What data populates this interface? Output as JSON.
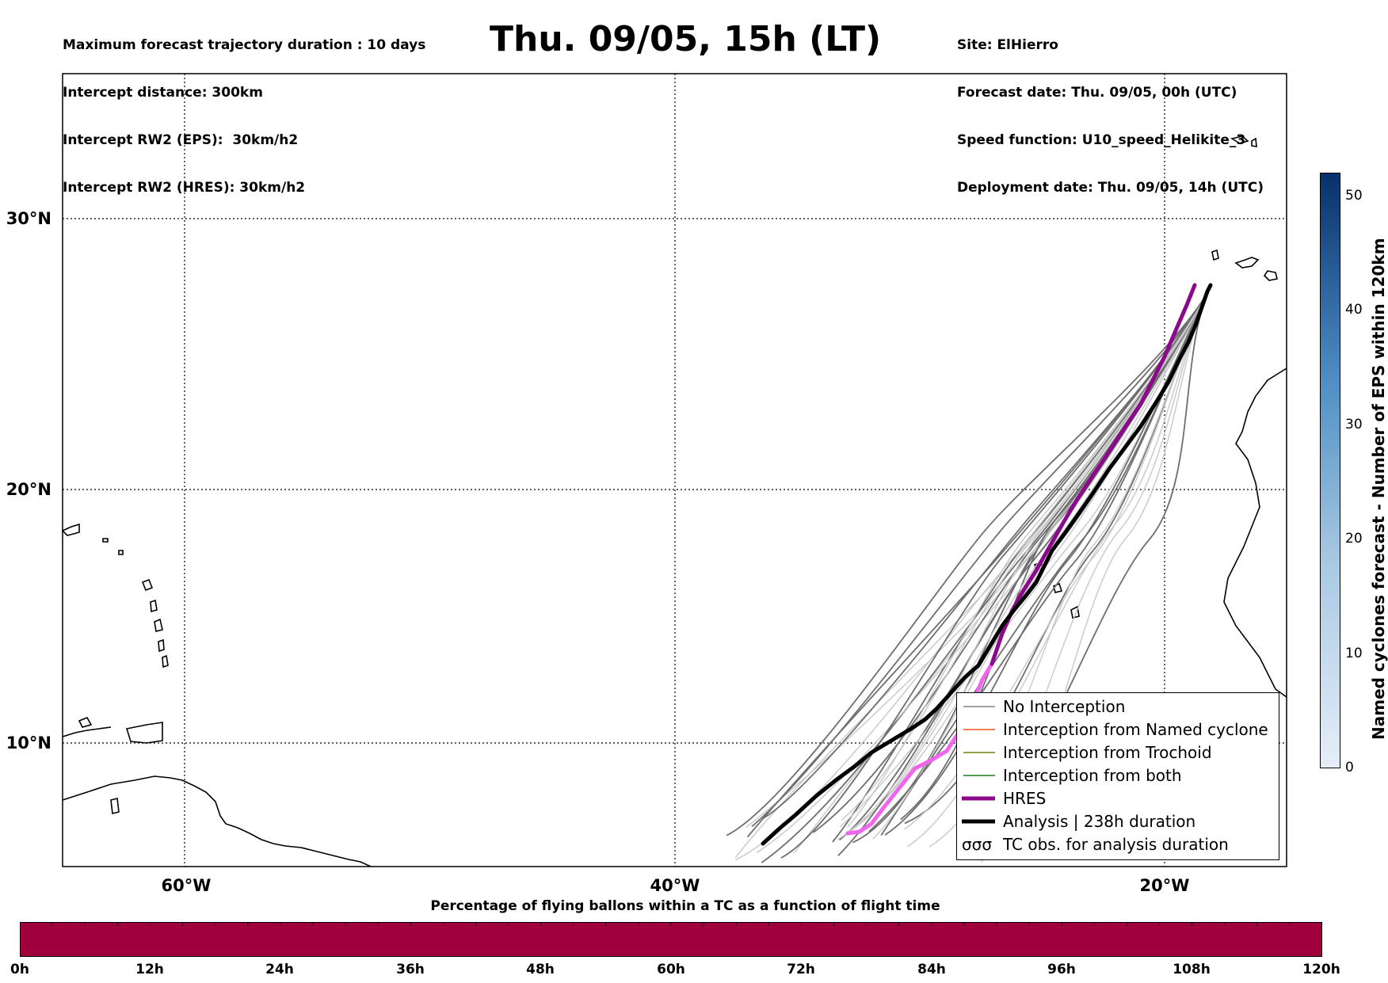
{
  "header": {
    "left_lines": [
      "Maximum forecast trajectory duration : 10 days",
      "Intercept distance: 300km",
      "Intercept RW2 (EPS):  30km/h2",
      "Intercept RW2 (HRES): 30km/h2"
    ],
    "title": "Thu. 09/05, 15h (LT)",
    "right_lines": [
      "Site: ElHierro",
      "Forecast date: Thu. 09/05, 00h (UTC)",
      "Speed function: U10_speed_Helikite_3",
      "Deployment date: Thu. 09/05, 14h (UTC)"
    ]
  },
  "map": {
    "lat_ticks": [
      "30°N",
      "20°N",
      "10°N"
    ],
    "lon_ticks": [
      "60°W",
      "40°W",
      "20°W"
    ],
    "gridline_style": "dotted"
  },
  "legend": {
    "items": [
      {
        "label": "No Interception",
        "color": "#808080",
        "style": "thin"
      },
      {
        "label": "Interception from Named cyclone",
        "color": "#e8541c",
        "style": "thin"
      },
      {
        "label": "Interception from Trochoid",
        "color": "#7a7a12",
        "style": "thin"
      },
      {
        "label": "Interception from both",
        "color": "#1e7a1e",
        "style": "thin"
      },
      {
        "label": "HRES",
        "color": "#8b0a8b",
        "style": "thick"
      },
      {
        "label": "Analysis | 238h duration",
        "color": "#000000",
        "style": "thick"
      },
      {
        "label": "TC obs. for analysis duration",
        "color": "#000000",
        "style": "symbol"
      }
    ],
    "tc_symbol": "σσσ"
  },
  "colorbar": {
    "label": "Named cyclones forecast - Number of EPS within 120km",
    "ticks": [
      "0",
      "10",
      "20",
      "30",
      "40",
      "50"
    ],
    "min": 0,
    "max": 52,
    "color_low": "#e6eef8",
    "color_high": "#08306b"
  },
  "flight_bar": {
    "caption": "Percentage of flying ballons within a TC as a function of flight time",
    "ticks": [
      "0h",
      "12h",
      "24h",
      "36h",
      "48h",
      "60h",
      "72h",
      "84h",
      "96h",
      "108h",
      "120h"
    ],
    "fill_color": "#a0003c"
  },
  "colors": {
    "ensemble_light": "#c8c8c8",
    "ensemble_dark": "#6e6e6e",
    "hres": "#8b0a8b",
    "hres_early": "#ee66ee",
    "analysis": "#000000"
  }
}
